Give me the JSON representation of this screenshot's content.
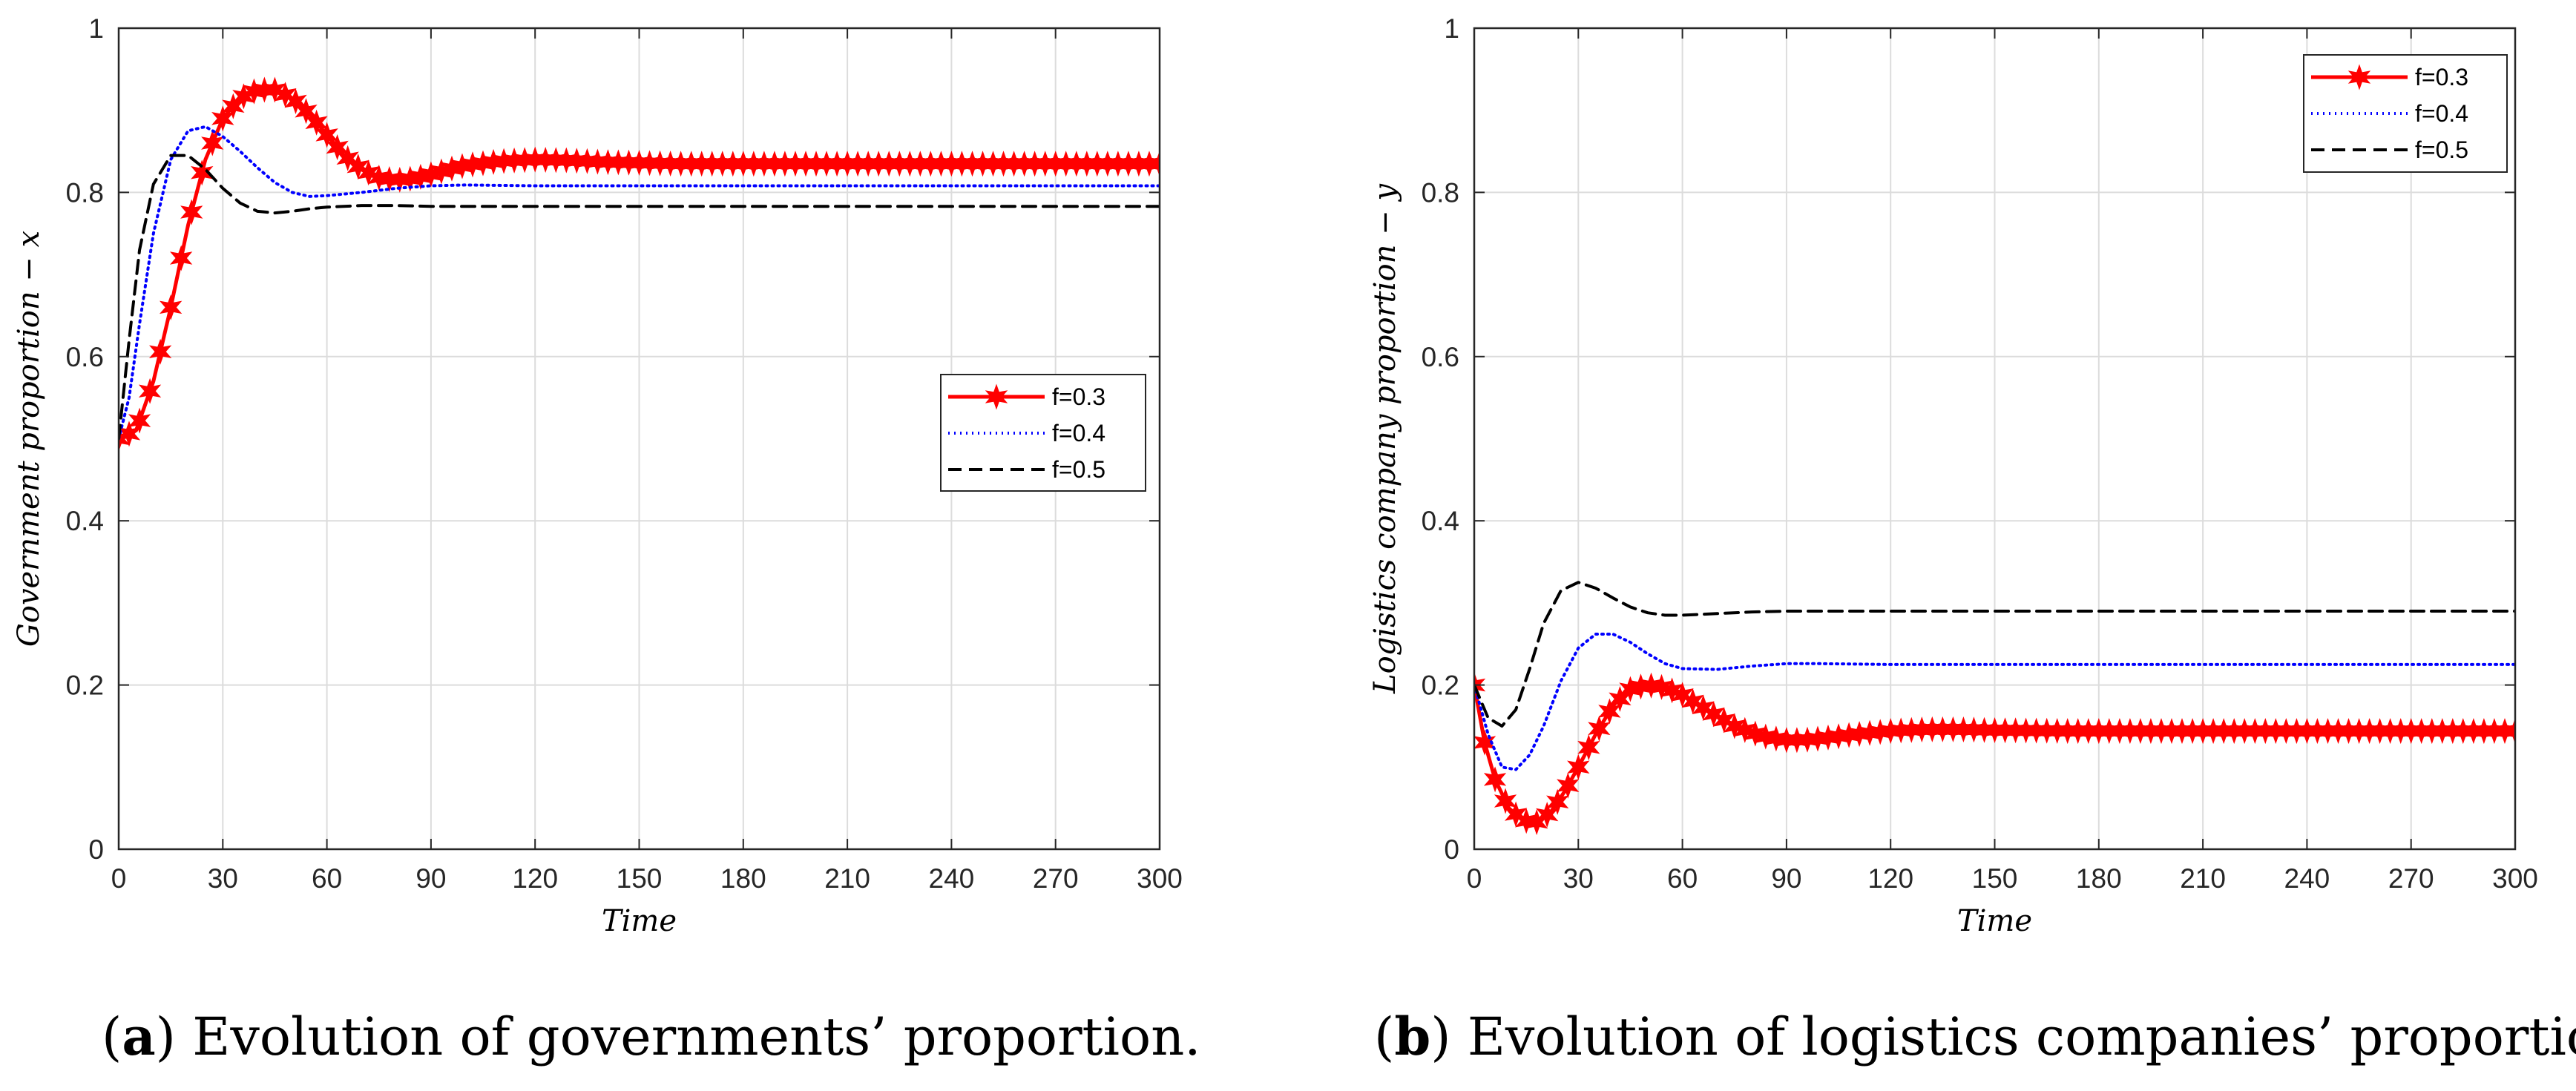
{
  "chart_data": [
    {
      "type": "line",
      "id": "a",
      "xlabel": "Time",
      "ylabel": "Government proportion − x",
      "xlim": [
        0,
        300
      ],
      "ylim": [
        0,
        1
      ],
      "xticks": [
        0,
        30,
        60,
        90,
        120,
        150,
        180,
        210,
        240,
        270,
        300
      ],
      "yticks": [
        0,
        0.2,
        0.4,
        0.6,
        0.8,
        1
      ],
      "xtick_labels": [
        "0",
        "30",
        "60",
        "90",
        "120",
        "150",
        "180",
        "210",
        "240",
        "270",
        "300"
      ],
      "ytick_labels": [
        "0",
        "0.2",
        "0.4",
        "0.6",
        "0.8",
        "1"
      ],
      "grid": true,
      "legend_position": "center-right",
      "caption_tag": "a",
      "caption_text": " Evolution of governments’ proportion.",
      "series": [
        {
          "name": "f=0.3",
          "color": "#ff0000",
          "style": "solid-star",
          "x": [
            0,
            5,
            10,
            15,
            20,
            25,
            30,
            35,
            40,
            45,
            50,
            55,
            60,
            65,
            70,
            75,
            80,
            85,
            90,
            95,
            100,
            110,
            120,
            130,
            140,
            150,
            160,
            180,
            200,
            220,
            240,
            260,
            280,
            300
          ],
          "y": [
            0.5,
            0.51,
            0.57,
            0.66,
            0.76,
            0.84,
            0.89,
            0.915,
            0.925,
            0.925,
            0.915,
            0.895,
            0.87,
            0.845,
            0.828,
            0.818,
            0.815,
            0.817,
            0.822,
            0.828,
            0.833,
            0.838,
            0.84,
            0.839,
            0.837,
            0.836,
            0.835,
            0.835,
            0.835,
            0.835,
            0.835,
            0.835,
            0.835,
            0.835
          ]
        },
        {
          "name": "f=0.4",
          "color": "#0000ff",
          "style": "dotted",
          "x": [
            0,
            3,
            6,
            10,
            15,
            20,
            25,
            30,
            35,
            40,
            45,
            50,
            55,
            60,
            70,
            80,
            90,
            100,
            120,
            150,
            200,
            250,
            300
          ],
          "y": [
            0.5,
            0.55,
            0.64,
            0.75,
            0.84,
            0.875,
            0.88,
            0.868,
            0.85,
            0.83,
            0.812,
            0.8,
            0.795,
            0.796,
            0.8,
            0.805,
            0.808,
            0.809,
            0.808,
            0.808,
            0.808,
            0.808,
            0.808
          ]
        },
        {
          "name": "f=0.5",
          "color": "#000000",
          "style": "dashed",
          "x": [
            0,
            3,
            6,
            10,
            15,
            20,
            25,
            30,
            35,
            40,
            45,
            50,
            55,
            60,
            70,
            80,
            90,
            100,
            120,
            150,
            200,
            250,
            300
          ],
          "y": [
            0.5,
            0.62,
            0.73,
            0.81,
            0.845,
            0.845,
            0.828,
            0.805,
            0.787,
            0.777,
            0.775,
            0.777,
            0.78,
            0.782,
            0.784,
            0.784,
            0.783,
            0.783,
            0.783,
            0.783,
            0.783,
            0.783,
            0.783
          ]
        }
      ]
    },
    {
      "type": "line",
      "id": "b",
      "xlabel": "Time",
      "ylabel": "Logistics company proportion − y",
      "xlim": [
        0,
        300
      ],
      "ylim": [
        0,
        1
      ],
      "xticks": [
        0,
        30,
        60,
        90,
        120,
        150,
        180,
        210,
        240,
        270,
        300
      ],
      "yticks": [
        0,
        0.2,
        0.4,
        0.6,
        0.8,
        1
      ],
      "xtick_labels": [
        "0",
        "30",
        "60",
        "90",
        "120",
        "150",
        "180",
        "210",
        "240",
        "270",
        "300"
      ],
      "ytick_labels": [
        "0",
        "0.2",
        "0.4",
        "0.6",
        "0.8",
        "1"
      ],
      "grid": true,
      "legend_position": "top-right",
      "caption_tag": "b",
      "caption_text": " Evolution of logistics companies’ proportion.",
      "series": [
        {
          "name": "f=0.3",
          "color": "#ff0000",
          "style": "solid-star",
          "x": [
            0,
            3,
            6,
            10,
            14,
            18,
            22,
            26,
            30,
            35,
            40,
            45,
            50,
            55,
            60,
            65,
            70,
            75,
            80,
            85,
            90,
            95,
            100,
            110,
            120,
            130,
            140,
            150,
            170,
            200,
            230,
            260,
            300
          ],
          "y": [
            0.2,
            0.13,
            0.085,
            0.05,
            0.035,
            0.033,
            0.045,
            0.07,
            0.1,
            0.14,
            0.175,
            0.195,
            0.2,
            0.197,
            0.188,
            0.175,
            0.162,
            0.15,
            0.142,
            0.136,
            0.133,
            0.133,
            0.135,
            0.14,
            0.144,
            0.146,
            0.146,
            0.145,
            0.144,
            0.144,
            0.144,
            0.144,
            0.144
          ]
        },
        {
          "name": "f=0.4",
          "color": "#0000ff",
          "style": "dotted",
          "x": [
            0,
            4,
            8,
            12,
            16,
            20,
            25,
            30,
            35,
            40,
            45,
            50,
            55,
            60,
            70,
            80,
            90,
            100,
            120,
            150,
            200,
            250,
            300
          ],
          "y": [
            0.2,
            0.14,
            0.1,
            0.097,
            0.115,
            0.15,
            0.205,
            0.245,
            0.262,
            0.262,
            0.252,
            0.238,
            0.226,
            0.22,
            0.219,
            0.223,
            0.226,
            0.226,
            0.225,
            0.225,
            0.225,
            0.225,
            0.225
          ]
        },
        {
          "name": "f=0.5",
          "color": "#000000",
          "style": "dashed",
          "x": [
            0,
            4,
            8,
            12,
            16,
            20,
            25,
            30,
            35,
            40,
            45,
            50,
            55,
            60,
            70,
            80,
            90,
            100,
            120,
            150,
            200,
            250,
            300
          ],
          "y": [
            0.2,
            0.16,
            0.15,
            0.17,
            0.22,
            0.275,
            0.315,
            0.325,
            0.318,
            0.306,
            0.295,
            0.288,
            0.285,
            0.285,
            0.287,
            0.289,
            0.29,
            0.29,
            0.29,
            0.29,
            0.29,
            0.29,
            0.29
          ]
        }
      ]
    }
  ]
}
